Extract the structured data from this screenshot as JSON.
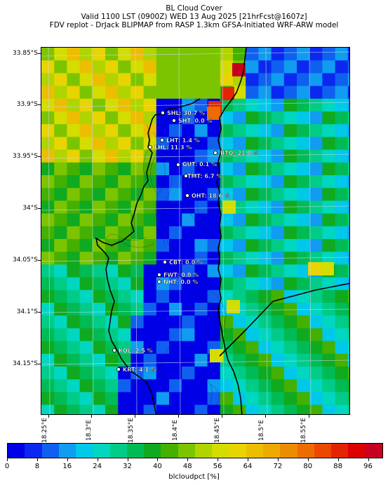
{
  "header": {
    "title": "BL Cloud Cover",
    "line2": "Valid 1100 LST (0900Z) WED 13 Aug 2025 [21hrFcst@1607z]",
    "line3": "FDV replot - DrJack BLIPMAP from RASP 1.3km GFSA-Initiated WRF-ARW model"
  },
  "axes": {
    "lat_labels": [
      "33.85°S",
      "33.9°S",
      "33.95°S",
      "34°S",
      "34.05°S",
      "34.1°S",
      "34.15°S"
    ],
    "lon_labels": [
      "18.25°E",
      "18.3°E",
      "18.35°E",
      "18.4°E",
      "18.45°E",
      "18.5°E",
      "18.55°E"
    ]
  },
  "stations": [
    {
      "label": "SHL: 30.7 %"
    },
    {
      "label": "SHT: 0.0 %"
    },
    {
      "label": "LHT: 1.4 %"
    },
    {
      "label": "LHL: 11.3 %"
    },
    {
      "label": "BTO: 21.0 %"
    },
    {
      "label": "GUT: 0.1 %"
    },
    {
      "label": "TMT: 6.7 %"
    },
    {
      "label": "OHT: 18.6 %"
    },
    {
      "label": "CBT: 0.0 %"
    },
    {
      "label": "FWT: 0.0 %"
    },
    {
      "label": "NHT: 0.0 %"
    },
    {
      "label": "KOL: 2.5 %"
    },
    {
      "label": "KRT: 4.1 %"
    }
  ],
  "colorbar": {
    "label": "blcloudpct [%]",
    "tick_labels": [
      "0",
      "8",
      "16",
      "24",
      "32",
      "40",
      "48",
      "56",
      "64",
      "72",
      "80",
      "88",
      "96"
    ],
    "colors": [
      "#0000e6",
      "#0a28f0",
      "#1060f0",
      "#109cf0",
      "#00c8e8",
      "#00d6c0",
      "#00cc88",
      "#00bb55",
      "#10aa20",
      "#44b000",
      "#7cc400",
      "#b0d400",
      "#d4dc00",
      "#e8d400",
      "#ecbe00",
      "#ecaa00",
      "#ec8c00",
      "#ec6c00",
      "#ec4800",
      "#e42400",
      "#dc0000",
      "#c80020"
    ]
  }
}
